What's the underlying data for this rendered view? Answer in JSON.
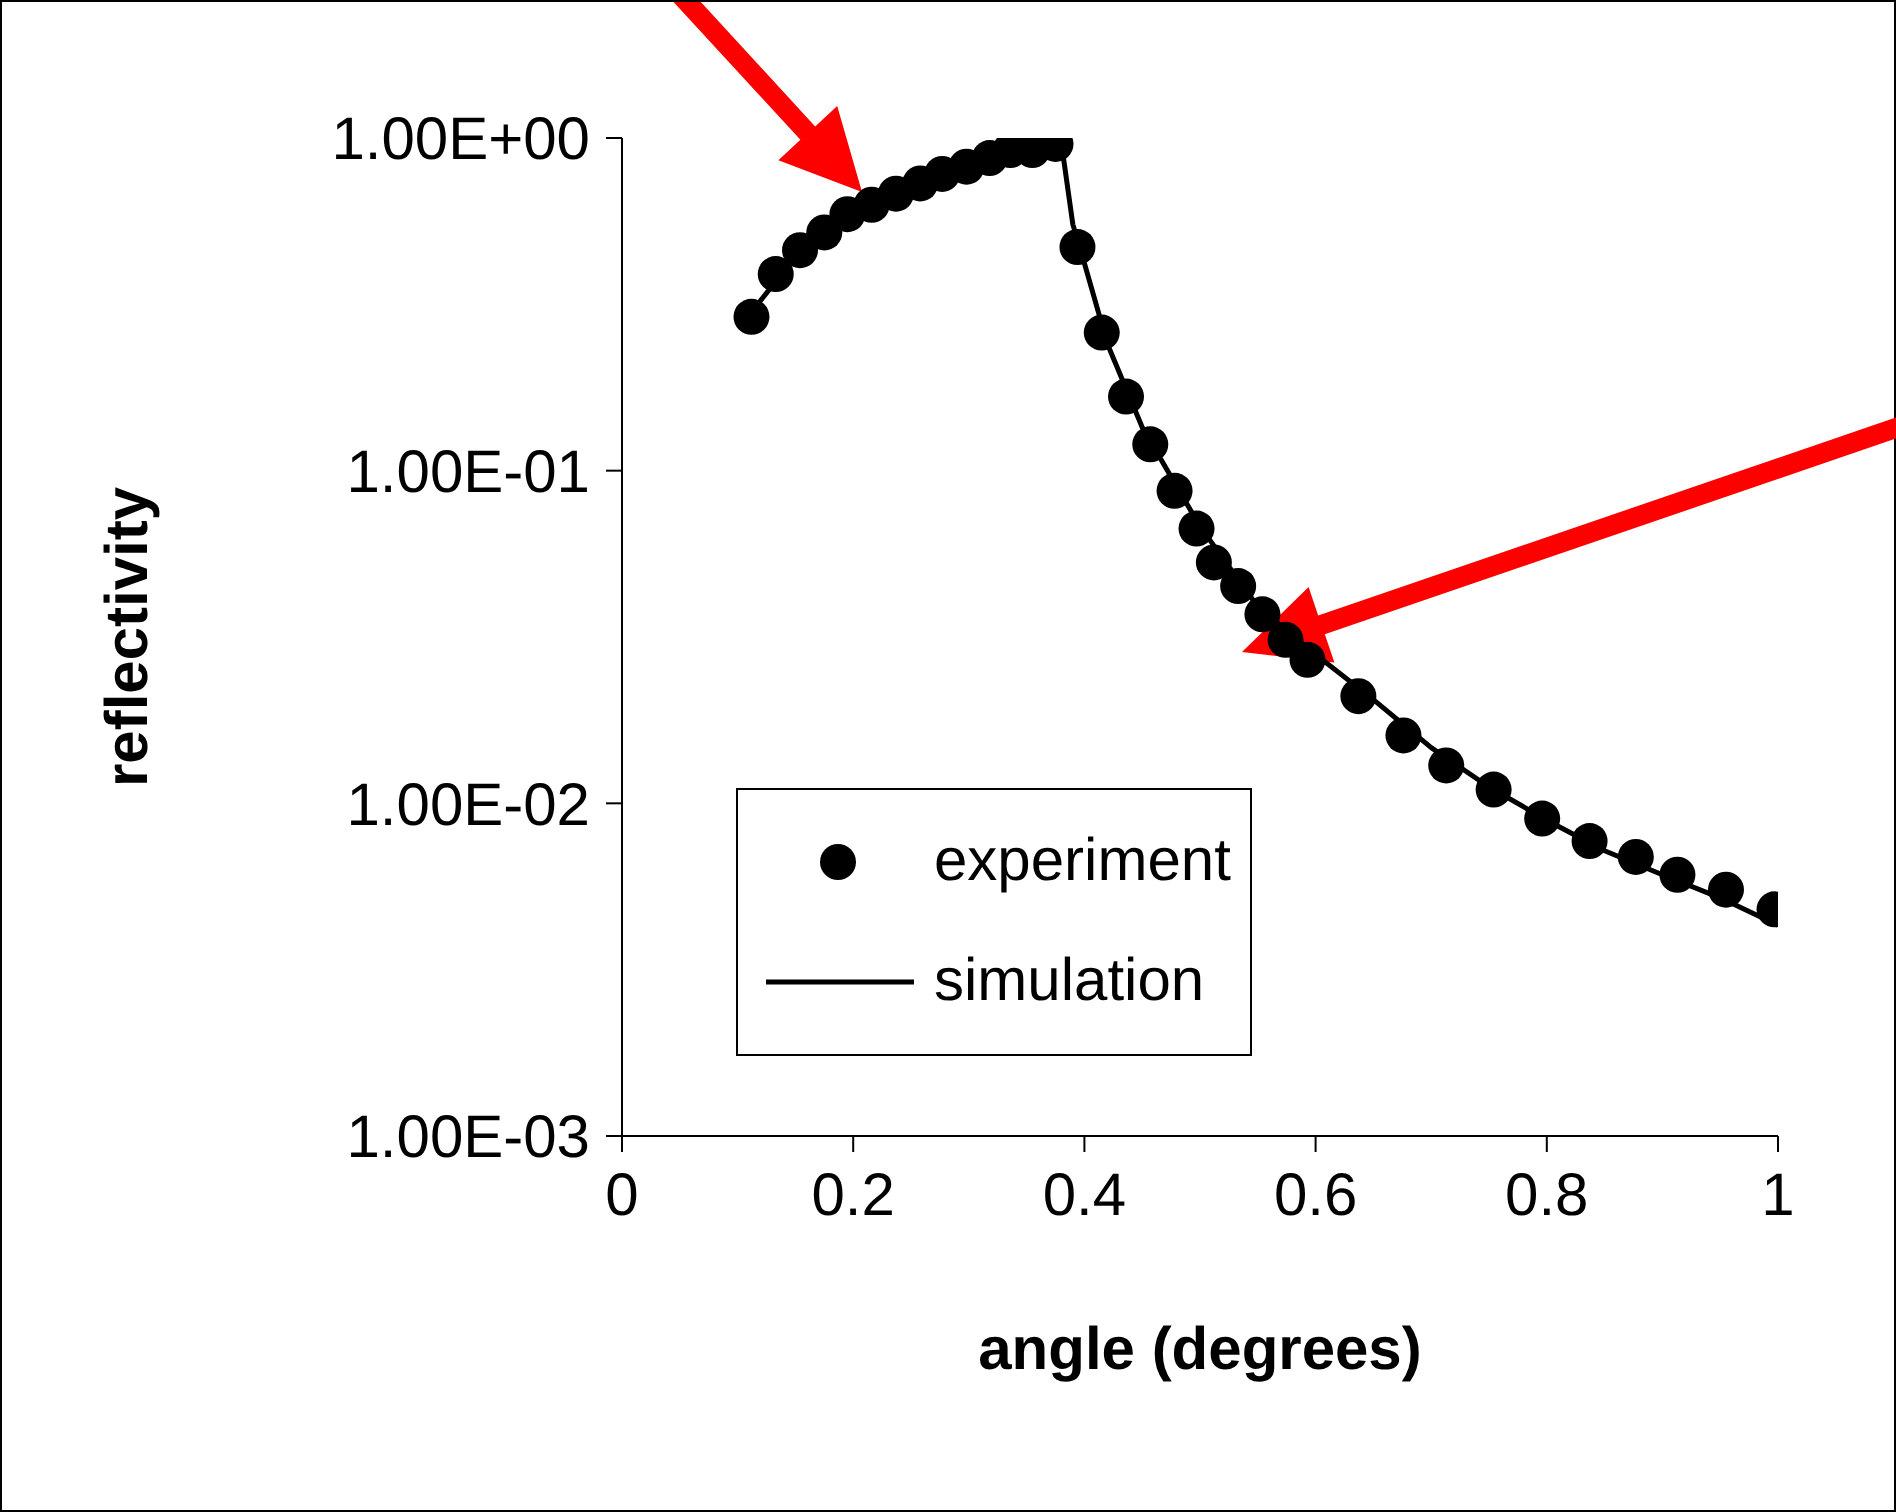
{
  "chart_data": {
    "type": "scatter",
    "xlabel": "angle (degrees)",
    "ylabel": "reflectivity",
    "log": "y",
    "xlim": [
      0,
      1
    ],
    "xticks": [
      0,
      0.2,
      0.4,
      0.6,
      0.8,
      1
    ],
    "ylim": [
      0.001,
      1
    ],
    "yticks": [
      {
        "value": 0.001,
        "label": "1.00E-03"
      },
      {
        "value": 0.01,
        "label": "1.00E-02"
      },
      {
        "value": 0.1,
        "label": "1.00E-01"
      },
      {
        "value": 1,
        "label": "1.00E+00"
      }
    ],
    "grid": false,
    "legend": "bottom left",
    "series": [
      {
        "name": "experiment",
        "marker": "circle",
        "color": "#000000",
        "x": [
          0.112,
          0.133,
          0.154,
          0.175,
          0.195,
          0.216,
          0.237,
          0.258,
          0.277,
          0.298,
          0.318,
          0.336,
          0.355,
          0.375,
          0.394,
          0.415,
          0.436,
          0.457,
          0.478,
          0.497,
          0.512,
          0.533,
          0.554,
          0.574,
          0.593,
          0.637,
          0.676,
          0.713,
          0.754,
          0.796,
          0.837,
          0.877,
          0.913,
          0.955,
          0.997
        ],
        "values": [
          0.29,
          0.39,
          0.46,
          0.52,
          0.59,
          0.63,
          0.68,
          0.73,
          0.78,
          0.82,
          0.87,
          0.92,
          0.92,
          0.96,
          0.47,
          0.26,
          0.167,
          0.12,
          0.087,
          0.067,
          0.053,
          0.045,
          0.037,
          0.031,
          0.027,
          0.021,
          0.016,
          0.013,
          0.011,
          0.009,
          0.0077,
          0.0069,
          0.0061,
          0.0055,
          0.0048
        ]
      },
      {
        "name": "simulation",
        "type": "line",
        "line_style": "solid",
        "color": "#000000",
        "x": [
          0.112,
          0.15,
          0.2,
          0.25,
          0.3,
          0.35,
          0.38,
          0.39,
          0.4,
          0.42,
          0.45,
          0.5,
          0.55,
          0.6,
          0.65,
          0.7,
          0.75,
          0.8,
          0.85,
          0.9,
          0.95,
          1.0
        ],
        "values": [
          0.3,
          0.44,
          0.59,
          0.71,
          0.83,
          0.91,
          0.97,
          0.55,
          0.42,
          0.24,
          0.135,
          0.068,
          0.039,
          0.028,
          0.0205,
          0.0147,
          0.0112,
          0.0089,
          0.0072,
          0.0061,
          0.0052,
          0.0043
        ]
      }
    ]
  }
}
